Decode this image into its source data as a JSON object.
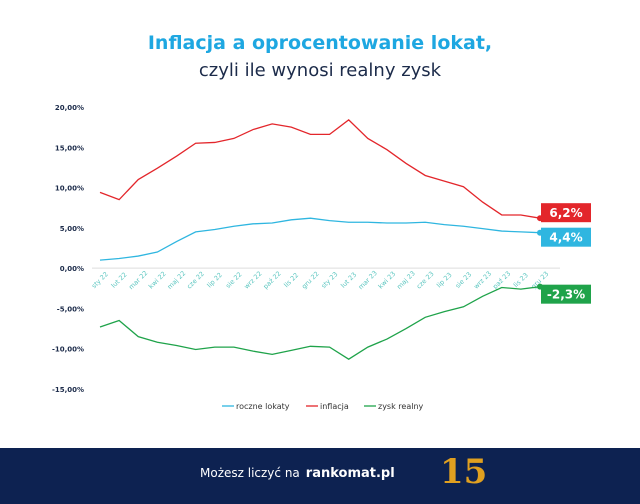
{
  "header": {
    "title": "Inflacja a oprocentowanie lokat,",
    "subtitle": "czyli ile wynosi realny zysk"
  },
  "footer": {
    "text": "Możesz liczyć na",
    "brand": "rankomat.pl",
    "badge": "15"
  },
  "chart_data": {
    "type": "line",
    "categories": [
      "sty 22",
      "lut 22",
      "mar 22",
      "kwi 22",
      "maj 22",
      "cze 22",
      "lip 22",
      "sie 22",
      "wrz 22",
      "paź 22",
      "lis 22",
      "gru 22",
      "sty 23",
      "lut 23",
      "mar 23",
      "kwi 23",
      "maj 23",
      "cze 23",
      "lip 23",
      "sie 23",
      "wrz 23",
      "paź 23",
      "lis 23",
      "gru 23"
    ],
    "ylim": [
      -15,
      20
    ],
    "yticks": [
      "20,00%",
      "15,00%",
      "10,00%",
      "5,00%",
      "0,00%",
      "-5,00%",
      "-10,00%",
      "-15,00%"
    ],
    "grid": false,
    "legend": "bottom",
    "series": [
      {
        "name": "roczne lokaty",
        "color": "#2fb6e0",
        "end_label": "4,4%",
        "values": [
          1.0,
          1.2,
          1.5,
          2.0,
          3.3,
          4.5,
          4.8,
          5.2,
          5.5,
          5.6,
          6.0,
          6.2,
          5.9,
          5.7,
          5.7,
          5.6,
          5.6,
          5.7,
          5.4,
          5.2,
          4.9,
          4.6,
          4.5,
          4.4
        ]
      },
      {
        "name": "inflacja",
        "color": "#e3262b",
        "end_label": "6,2%",
        "values": [
          9.4,
          8.5,
          11.0,
          12.4,
          13.9,
          15.5,
          15.6,
          16.1,
          17.2,
          17.9,
          17.5,
          16.6,
          16.6,
          18.4,
          16.1,
          14.7,
          13.0,
          11.5,
          10.8,
          10.1,
          8.2,
          6.6,
          6.6,
          6.2
        ]
      },
      {
        "name": "zysk realny",
        "color": "#1fa34a",
        "end_label": "-2,3%",
        "values": [
          -7.3,
          -6.5,
          -8.5,
          -9.2,
          -9.6,
          -10.1,
          -9.8,
          -9.8,
          -10.3,
          -10.7,
          -10.2,
          -9.7,
          -9.8,
          -11.3,
          -9.8,
          -8.8,
          -7.5,
          -6.1,
          -5.4,
          -4.8,
          -3.5,
          -2.4,
          -2.6,
          -2.3
        ]
      }
    ]
  }
}
